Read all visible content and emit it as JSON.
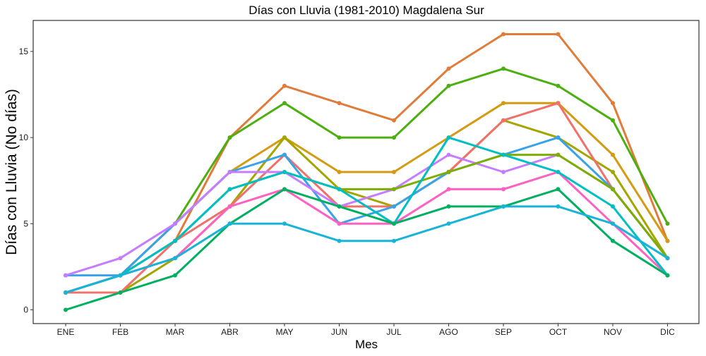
{
  "chart_data": {
    "type": "line",
    "title": "Días con Lluvia (1981-2010)  Magdalena Sur",
    "xlabel": "Mes",
    "ylabel": "Días con Lluvia (No días)",
    "categories": [
      "ENE",
      "FEB",
      "MAR",
      "ABR",
      "MAY",
      "JUN",
      "JUL",
      "AGO",
      "SEP",
      "OCT",
      "NOV",
      "DIC"
    ],
    "ylim": [
      -0.8,
      16.8
    ],
    "yticks": [
      0,
      5,
      10,
      15
    ],
    "grid": false,
    "legend": "none",
    "series": [
      {
        "color": "#E07B39",
        "values": [
          1,
          2,
          4,
          10,
          13,
          12,
          11,
          14,
          16,
          16,
          12,
          4
        ]
      },
      {
        "color": "#4DAF0F",
        "values": [
          1,
          2,
          5,
          10,
          12,
          10,
          10,
          13,
          14,
          13,
          11,
          5
        ]
      },
      {
        "color": "#D49A11",
        "values": [
          1,
          2,
          5,
          8,
          10,
          8,
          8,
          10,
          12,
          12,
          9,
          4
        ]
      },
      {
        "color": "#A3A500",
        "values": [
          1,
          1,
          3,
          6,
          10,
          7,
          6,
          8,
          11,
          10,
          8,
          3
        ]
      },
      {
        "color": "#F0706A",
        "values": [
          1,
          1,
          4,
          6,
          9,
          6,
          6,
          8,
          11,
          12,
          7,
          3
        ]
      },
      {
        "color": "#39A2E8",
        "values": [
          2,
          2,
          5,
          8,
          9,
          5,
          6,
          8,
          9,
          10,
          7,
          3
        ]
      },
      {
        "color": "#C77CFF",
        "values": [
          2,
          3,
          5,
          8,
          8,
          6,
          7,
          9,
          8,
          9,
          7,
          3
        ]
      },
      {
        "color": "#7CAE00",
        "values": [
          1,
          2,
          4,
          7,
          8,
          7,
          7,
          8,
          9,
          9,
          7,
          3
        ]
      },
      {
        "color": "#FF61C3",
        "values": [
          1,
          2,
          3,
          6,
          7,
          5,
          5,
          7,
          7,
          8,
          5,
          2
        ]
      },
      {
        "color": "#00BFC4",
        "values": [
          1,
          2,
          4,
          7,
          8,
          7,
          5,
          10,
          9,
          8,
          6,
          2
        ]
      },
      {
        "color": "#00B060",
        "values": [
          0,
          1,
          2,
          5,
          7,
          6,
          5,
          6,
          6,
          7,
          4,
          2
        ]
      },
      {
        "color": "#18B4D8",
        "values": [
          1,
          2,
          3,
          5,
          5,
          4,
          4,
          5,
          6,
          6,
          5,
          3
        ]
      }
    ]
  }
}
